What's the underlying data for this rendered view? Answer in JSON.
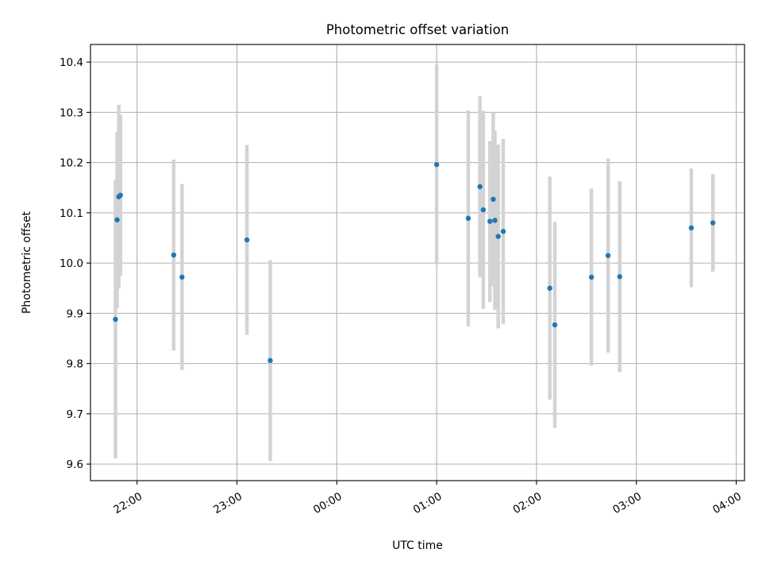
{
  "chart_data": {
    "type": "scatter",
    "title": "Photometric offset variation",
    "xlabel": "UTC time",
    "ylabel": "Photometric offset",
    "grid": true,
    "xlim": [
      "21:32",
      "04:05"
    ],
    "ylim": [
      9.567,
      10.435
    ],
    "x_ticks": [
      "22:00",
      "23:00",
      "00:00",
      "01:00",
      "02:00",
      "03:00",
      "04:00"
    ],
    "y_ticks": [
      "9.6",
      "9.7",
      "9.8",
      "9.9",
      "10.0",
      "10.1",
      "10.2",
      "10.3",
      "10.4"
    ],
    "colors": {
      "point": "#1f77b4",
      "errorbar": "#d3d3d3",
      "grid": "#b0b0b0"
    },
    "points": [
      {
        "x": "21:47",
        "y": 9.888,
        "yerr": 0.277
      },
      {
        "x": "21:48",
        "y": 10.086,
        "yerr": 0.175
      },
      {
        "x": "21:49",
        "y": 10.132,
        "yerr": 0.183
      },
      {
        "x": "21:50",
        "y": 10.135,
        "yerr": 0.16
      },
      {
        "x": "22:22",
        "y": 10.016,
        "yerr": 0.19
      },
      {
        "x": "22:27",
        "y": 9.972,
        "yerr": 0.185
      },
      {
        "x": "23:06",
        "y": 10.046,
        "yerr": 0.189
      },
      {
        "x": "23:20",
        "y": 9.806,
        "yerr": 0.2
      },
      {
        "x": "01:00",
        "y": 10.196,
        "yerr": 0.199
      },
      {
        "x": "01:19",
        "y": 10.089,
        "yerr": 0.215
      },
      {
        "x": "01:26",
        "y": 10.152,
        "yerr": 0.18
      },
      {
        "x": "01:28",
        "y": 10.106,
        "yerr": 0.197
      },
      {
        "x": "01:32",
        "y": 10.083,
        "yerr": 0.16
      },
      {
        "x": "01:34",
        "y": 10.127,
        "yerr": 0.173
      },
      {
        "x": "01:35",
        "y": 10.085,
        "yerr": 0.178
      },
      {
        "x": "01:37",
        "y": 10.053,
        "yerr": 0.183
      },
      {
        "x": "01:40",
        "y": 10.063,
        "yerr": 0.184
      },
      {
        "x": "02:08",
        "y": 9.95,
        "yerr": 0.222
      },
      {
        "x": "02:11",
        "y": 9.877,
        "yerr": 0.205
      },
      {
        "x": "02:33",
        "y": 9.972,
        "yerr": 0.176
      },
      {
        "x": "02:43",
        "y": 10.015,
        "yerr": 0.193
      },
      {
        "x": "02:50",
        "y": 9.973,
        "yerr": 0.19
      },
      {
        "x": "03:33",
        "y": 10.07,
        "yerr": 0.118
      },
      {
        "x": "03:46",
        "y": 10.08,
        "yerr": 0.097
      }
    ]
  }
}
